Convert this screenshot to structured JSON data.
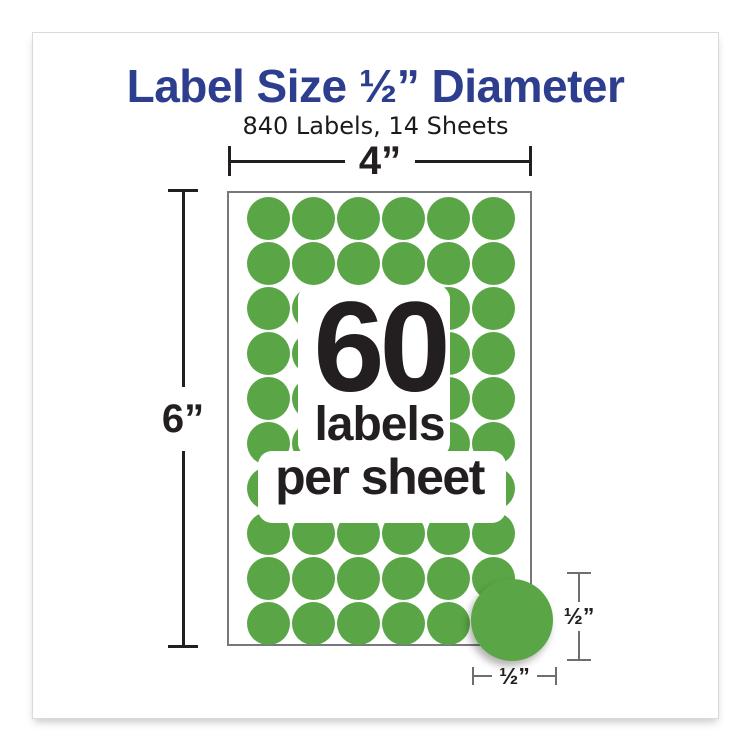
{
  "colors": {
    "title_blue": "#2d3e8f",
    "label_green": "#5aa646",
    "ink": "#231f20",
    "gray_line": "#6d6e71",
    "sheet_border": "#77787b"
  },
  "header": {
    "title": "Label Size ½” Diameter",
    "subtitle": "840 Labels, 14 Sheets"
  },
  "diagram": {
    "sheet_width_label": "4”",
    "sheet_height_label": "6”",
    "sheet": {
      "rows": 10,
      "columns": 6
    },
    "overlay": {
      "count": "60",
      "line1": "labels",
      "line2": "per sheet"
    },
    "callout": {
      "height_label": "½”",
      "width_label": "½”"
    }
  }
}
